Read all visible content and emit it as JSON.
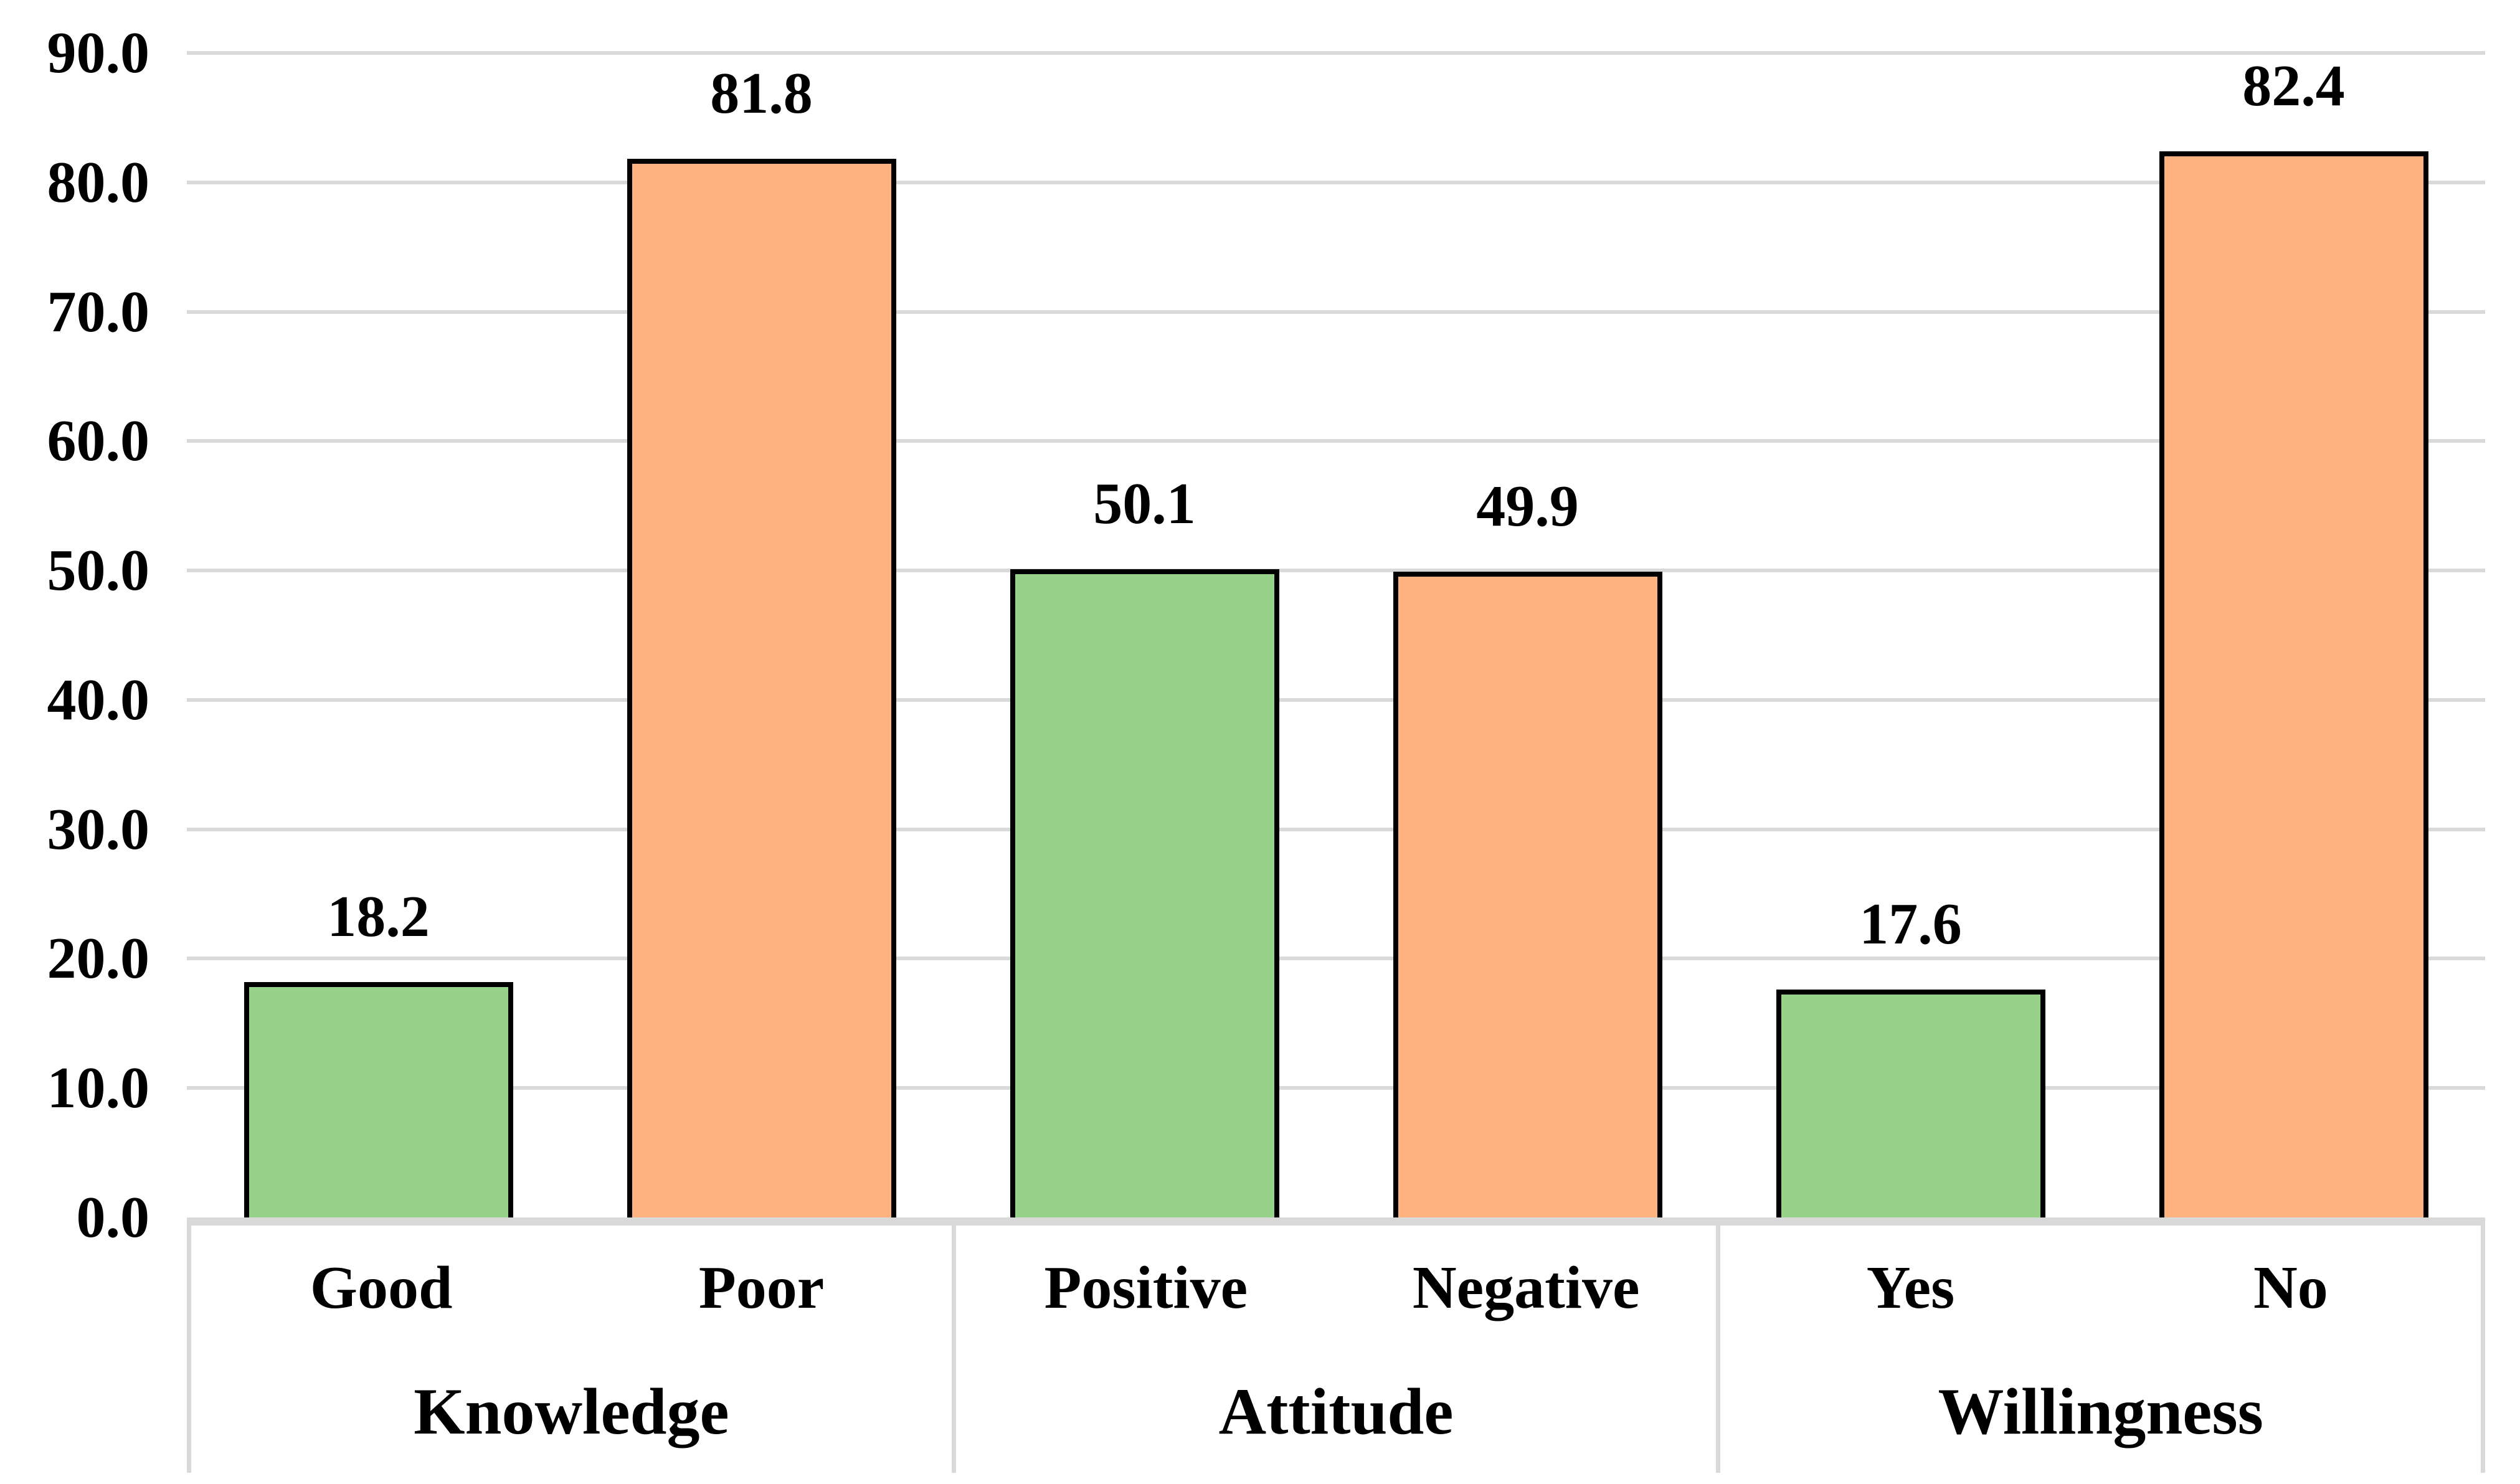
{
  "chart_data": {
    "type": "bar",
    "title": "",
    "xlabel": "",
    "ylabel": "",
    "ylim": [
      0,
      90
    ],
    "ytick_step": 10,
    "ytick_labels_top_to_bottom": [
      "90.0",
      "80.0",
      "70.0",
      "60.0",
      "50.0",
      "40.0",
      "30.0",
      "20.0",
      "10.0",
      "0.0"
    ],
    "grid": true,
    "legend": "none",
    "groups": [
      {
        "label": "Knowledge",
        "items": [
          {
            "category": "Good",
            "value": 18.2,
            "value_label": "18.2",
            "fill": "#98D18A"
          },
          {
            "category": "Poor",
            "value": 81.8,
            "value_label": "81.8",
            "fill": "#FEB280"
          }
        ]
      },
      {
        "label": "Attitude",
        "items": [
          {
            "category": "Positive",
            "value": 50.1,
            "value_label": "50.1",
            "fill": "#98D18A"
          },
          {
            "category": "Negative",
            "value": 49.9,
            "value_label": "49.9",
            "fill": "#FEB280"
          }
        ]
      },
      {
        "label": "Willingness",
        "items": [
          {
            "category": "Yes",
            "value": 17.6,
            "value_label": "17.6",
            "fill": "#98D18A"
          },
          {
            "category": "No",
            "value": 82.4,
            "value_label": "82.4",
            "fill": "#FEB280"
          }
        ]
      }
    ],
    "colors": {
      "green_fill": "#98D18A",
      "orange_fill": "#FEB280",
      "bar_border": "#000000",
      "gridline": "#D9D9D9",
      "axis_line": "#D9D9D9",
      "text": "#000000",
      "background": "#FFFFFF"
    }
  }
}
